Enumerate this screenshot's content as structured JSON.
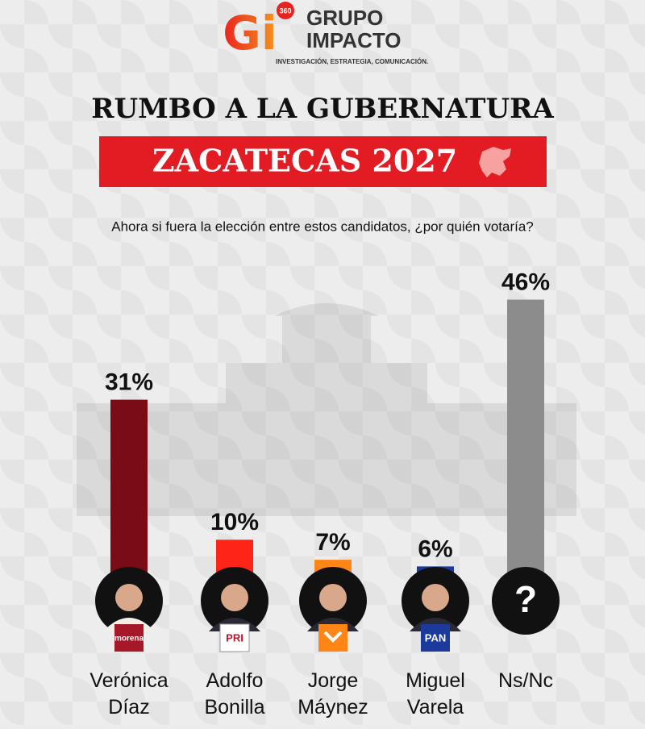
{
  "logo": {
    "mark": "Gi",
    "badge": "360",
    "name_lines": [
      "GRUPO",
      "IMPACTO"
    ],
    "tagline": "INVESTIGACIÓN, ESTRATEGIA, COMUNICACIÓN."
  },
  "chart_data": {
    "type": "bar",
    "title": "RUMBO A LA GUBERNATURA",
    "subtitle": "ZACATECAS 2027",
    "question": "Ahora si fuera la elección entre estos candidatos, ¿por quién votaría?",
    "categories": [
      "Verónica Díaz",
      "Adolfo Bonilla",
      "Jorge Máynez",
      "Miguel Varela",
      "Ns/Nc"
    ],
    "values": [
      31,
      10,
      7,
      6,
      46
    ],
    "value_labels": [
      "31%",
      "10%",
      "7%",
      "6%",
      "46%"
    ],
    "colors": [
      "#7a0c16",
      "#ff2418",
      "#ff8516",
      "#1c3a9c",
      "#8c8c8c"
    ],
    "party_labels": [
      "morena",
      "PRI",
      null,
      "PAN",
      null
    ],
    "unknown_symbol": "?"
  }
}
